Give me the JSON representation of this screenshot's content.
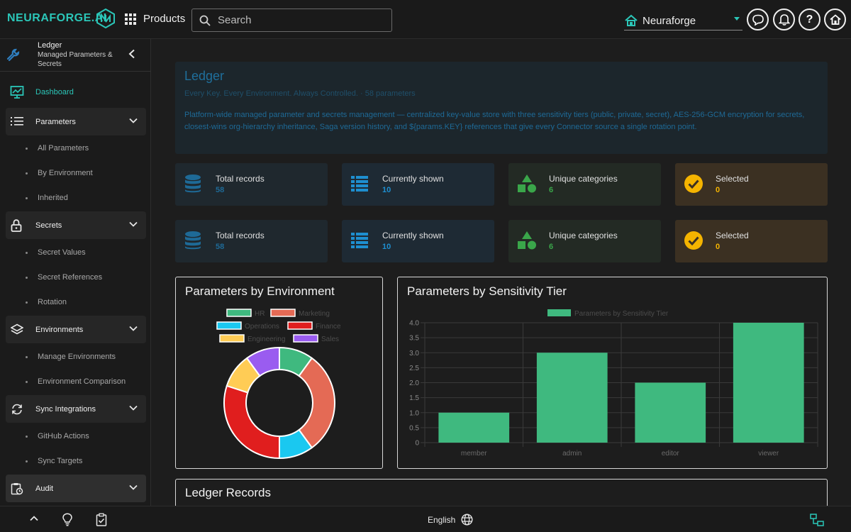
{
  "topbar": {
    "logo": "NEURAFORGE.AI",
    "products_label": "Products",
    "search_placeholder": "Search",
    "org_name": "Neuraforge"
  },
  "sidebar": {
    "title": "Ledger",
    "subtitle": "Managed Parameters & Secrets",
    "dashboard": "Dashboard",
    "groups": [
      {
        "label": "Parameters",
        "icon": "list-icon",
        "items": [
          "All Parameters",
          "By Environment",
          "Inherited"
        ]
      },
      {
        "label": "Secrets",
        "icon": "lock-icon",
        "items": [
          "Secret Values",
          "Secret References",
          "Rotation"
        ]
      },
      {
        "label": "Environments",
        "icon": "layers-icon",
        "items": [
          "Manage Environments",
          "Environment Comparison"
        ]
      },
      {
        "label": "Sync Integrations",
        "icon": "sync-icon",
        "items": [
          "GitHub Actions",
          "Sync Targets"
        ]
      },
      {
        "label": "Audit",
        "icon": "audit-icon",
        "items": []
      }
    ]
  },
  "hero": {
    "title": "Ledger",
    "tagline": "Every Key. Every Environment. Always Controlled. · 58 parameters",
    "description": "Platform-wide managed parameter and secrets management — centralized key-value store with three sensitivity tiers (public, private, secret), AES-256-GCM encryption for secrets, closest-wins org-hierarchy inheritance, Saga version history, and ${params.KEY} references that give every Connector source a single rotation point."
  },
  "stats": [
    {
      "label": "Total records",
      "value": "58",
      "color": "#1e6a97",
      "bg": "#1f282e",
      "icon": "database-icon"
    },
    {
      "label": "Currently shown",
      "value": "10",
      "color": "#1e8fd0",
      "bg": "#1e2a34",
      "icon": "table-icon"
    },
    {
      "label": "Unique categories",
      "value": "6",
      "color": "#3aa64a",
      "bg": "#232a24",
      "icon": "shapes-icon"
    },
    {
      "label": "Selected",
      "value": "0",
      "color": "#f5b400",
      "bg": "#3b3022",
      "icon": "check-circle-icon"
    }
  ],
  "charts": {
    "environment_title": "Parameters by Environment",
    "sensitivity_title": "Parameters by Sensitivity Tier",
    "records_title": "Ledger Records"
  },
  "chart_data": [
    {
      "type": "pie",
      "title": "Parameters by Environment",
      "categories": [
        "HR",
        "Marketing",
        "Operations",
        "Finance",
        "Engineering",
        "Sales"
      ],
      "values": [
        1,
        3,
        1,
        3,
        1,
        1
      ],
      "colors": [
        "#3fb97f",
        "#e46a55",
        "#1ac8f0",
        "#e01e1e",
        "#ffcc55",
        "#9a5cf0"
      ],
      "donut": true,
      "legend": "top"
    },
    {
      "type": "bar",
      "title": "Parameters by Sensitivity Tier",
      "categories": [
        "member",
        "admin",
        "editor",
        "viewer"
      ],
      "series": [
        {
          "name": "Parameters by Sensitivity Tier",
          "values": [
            1,
            3,
            2,
            4
          ]
        }
      ],
      "ylim": [
        0,
        4
      ],
      "yticks": [
        "0",
        "0.5",
        "1.0",
        "1.5",
        "2.0",
        "2.5",
        "3.0",
        "3.5",
        "4.0"
      ],
      "grid": true,
      "legend": "top",
      "color": "#3fb97f"
    }
  ],
  "footer": {
    "language": "English"
  }
}
